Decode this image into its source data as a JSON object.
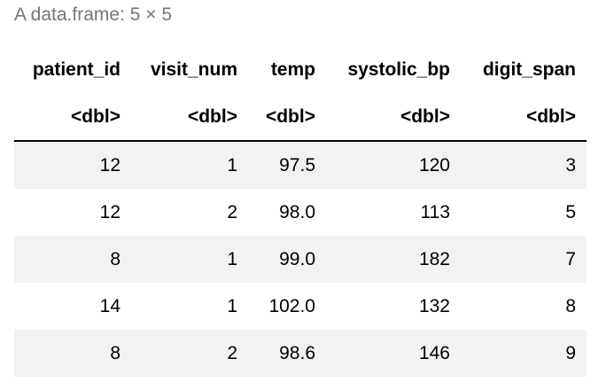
{
  "caption": "A data.frame: 5 × 5",
  "columns": [
    {
      "name": "patient_id",
      "type": "<dbl>"
    },
    {
      "name": "visit_num",
      "type": "<dbl>"
    },
    {
      "name": "temp",
      "type": "<dbl>"
    },
    {
      "name": "systolic_bp",
      "type": "<dbl>"
    },
    {
      "name": "digit_span",
      "type": "<dbl>"
    }
  ],
  "rows": [
    [
      "12",
      "1",
      "97.5",
      "120",
      "3"
    ],
    [
      "12",
      "2",
      "98.0",
      "113",
      "5"
    ],
    [
      "8",
      "1",
      "99.0",
      "182",
      "7"
    ],
    [
      "14",
      "1",
      "102.0",
      "132",
      "8"
    ],
    [
      "8",
      "2",
      "98.6",
      "146",
      "9"
    ]
  ],
  "colors": {
    "caption": "#757575",
    "stripe": "#f2f2f2",
    "rule": "#000000"
  }
}
